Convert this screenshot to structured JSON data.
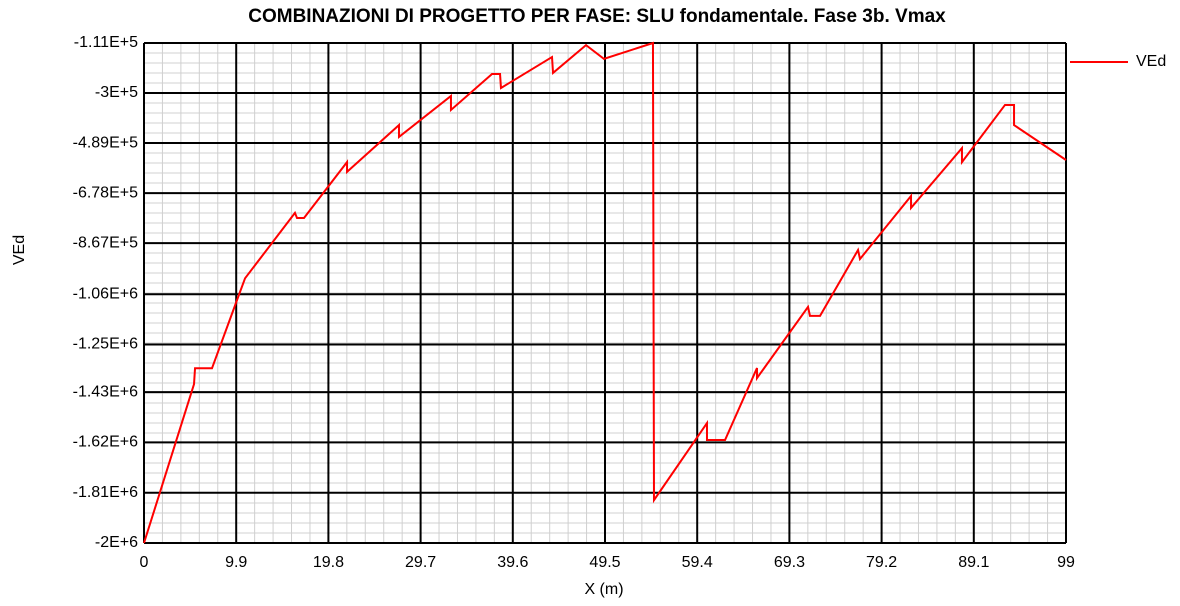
{
  "chart_data": {
    "type": "line",
    "title": "COMBINAZIONI DI PROGETTO PER FASE: SLU fondamentale. Fase 3b. Vmax",
    "x_label": "X (m)",
    "y_label": "VEd",
    "series": [
      {
        "name": "VEd",
        "color": "#ff0000",
        "x": [
          0,
          5.37,
          5.48,
          7.3,
          9.99,
          10.85,
          16.21,
          16.43,
          17.18,
          21.8,
          21.8,
          27.38,
          27.38,
          32.96,
          32.96,
          37.37,
          38.23,
          38.33,
          43.81,
          43.92,
          47.46,
          49.39,
          54.65,
          54.76,
          60.45,
          60.45,
          62.39,
          65.82,
          65.82,
          71.3,
          71.51,
          72.59,
          76.67,
          76.88,
          82.36,
          82.36,
          87.83,
          87.83,
          92.45,
          93.42,
          93.42,
          99
        ],
        "values": [
          -2000000,
          -1400000,
          -1340000,
          -1340000,
          -1082000,
          -1000000,
          -753000,
          -772000,
          -772000,
          -561000,
          -598000,
          -421000,
          -466000,
          -311000,
          -364000,
          -228000,
          -228000,
          -281000,
          -164000,
          -224000,
          -119000,
          -171000,
          -111000,
          -1838000,
          -1547000,
          -1611000,
          -1611000,
          -1339000,
          -1377000,
          -1108000,
          -1142000,
          -1142000,
          -893000,
          -927000,
          -689000,
          -734000,
          -508000,
          -561000,
          -345000,
          -345000,
          -421000,
          -553000
        ]
      }
    ],
    "xlim": [
      0,
      99
    ],
    "xticks": [
      0,
      9.9,
      19.8,
      29.7,
      39.6,
      49.5,
      59.4,
      69.3,
      79.2,
      89.1,
      99
    ],
    "ylim": [
      -2000000,
      -111000
    ],
    "yticks": [
      {
        "value": -2000000,
        "label": "-2E+6"
      },
      {
        "value": -1810000,
        "label": "-1.81E+6"
      },
      {
        "value": -1620000,
        "label": "-1.62E+6"
      },
      {
        "value": -1430000,
        "label": "-1.43E+6"
      },
      {
        "value": -1250000,
        "label": "-1.25E+6"
      },
      {
        "value": -1060000,
        "label": "-1.06E+6"
      },
      {
        "value": -867000,
        "label": "-8.67E+5"
      },
      {
        "value": -678000,
        "label": "-6.78E+5"
      },
      {
        "value": -489000,
        "label": "-4.89E+5"
      },
      {
        "value": -300000,
        "label": "-3E+5"
      },
      {
        "value": -111000,
        "label": "-1.11E+5"
      }
    ],
    "grid": true,
    "legend": "top-right"
  }
}
